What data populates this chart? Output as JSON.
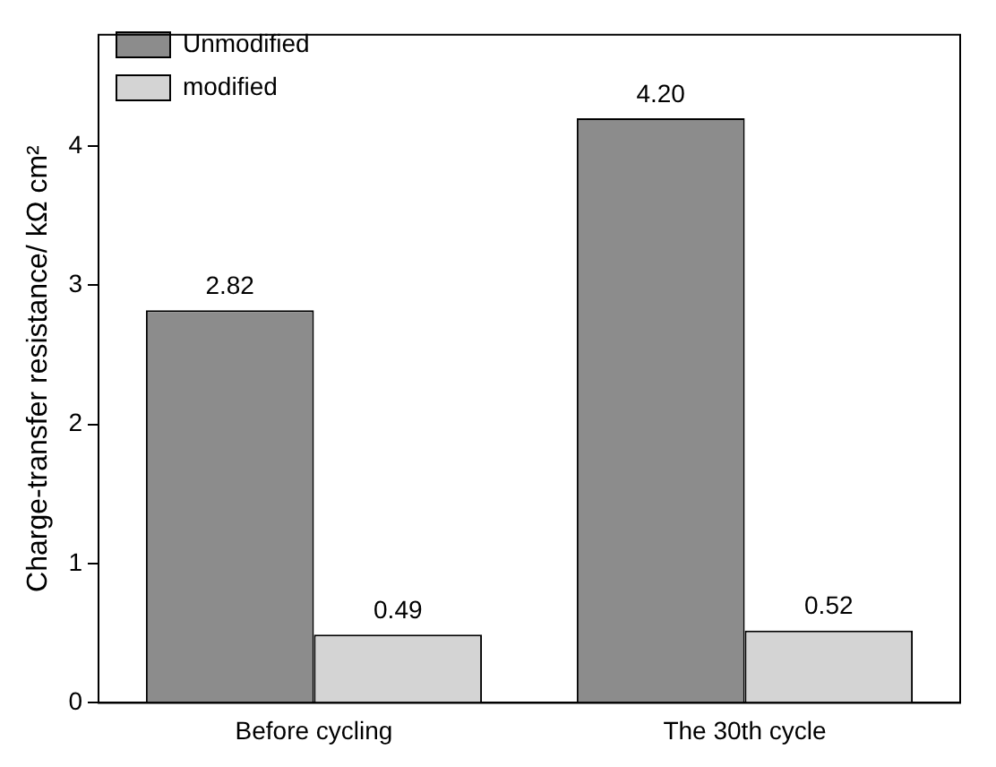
{
  "chart_data": {
    "type": "bar",
    "ylabel": "Charge-transfer resistance/ kΩ cm²",
    "categories": [
      "Before cycling",
      "The 30th cycle"
    ],
    "series": [
      {
        "name": "Unmodified",
        "color": "#8c8c8c",
        "values": [
          2.82,
          4.2
        ],
        "value_labels": [
          "2.82",
          "4.20"
        ]
      },
      {
        "name": "modified",
        "color": "#d4d4d4",
        "values": [
          0.49,
          0.52
        ],
        "value_labels": [
          "0.49",
          "0.52"
        ]
      }
    ],
    "ylim": [
      0,
      4.8
    ],
    "yticks": [
      0,
      1,
      2,
      3,
      4
    ],
    "legend": "top left",
    "grid": false
  }
}
